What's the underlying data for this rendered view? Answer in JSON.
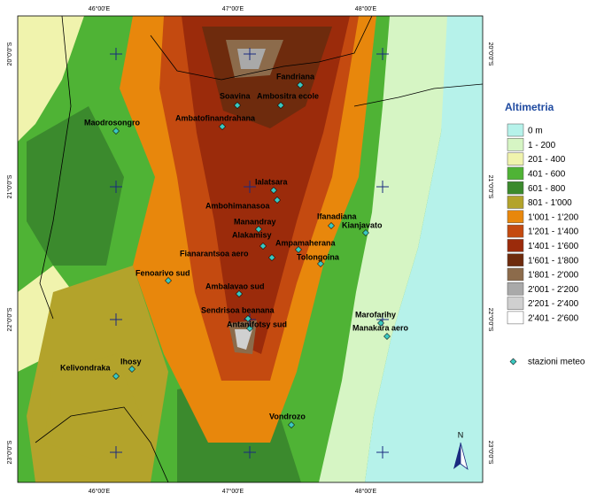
{
  "map": {
    "longitude_labels_top": [
      "46°00'E",
      "47°00'E",
      "48°00'E"
    ],
    "longitude_labels_bottom": [
      "46°00'E",
      "47°00'E",
      "48°00'E"
    ],
    "latitude_labels_left": [
      "20°0'0\"S",
      "21°0'0\"S",
      "22°0'0\"S",
      "23°0'0\"S"
    ],
    "latitude_labels_right": [
      "20°0'0\"S",
      "21°0'0\"S",
      "22°0'0\"S",
      "23°0'0\"S"
    ],
    "stations": [
      "Fandriana",
      "Soavina",
      "Ambositra ecole",
      "Ambatofinandrahana",
      "Maodrosongro",
      "Ialatsara",
      "Ambohimanasoa",
      "Manandray",
      "Ifanadiana",
      "Kianjavato",
      "Alakamisy",
      "Ampamaherana",
      "Fianarantsoa aero",
      "Tolongoina",
      "Fenoarivo sud",
      "Ambalavao sud",
      "Sendrisoa beanana",
      "Antanifotsy sud",
      "Marofarihy",
      "Manakara aero",
      "Ihosy",
      "Kelivondraka",
      "Vondrozo"
    ],
    "legend": {
      "title": "Altimetria",
      "classes": [
        {
          "label": "0  m",
          "color": "#b6f2ea"
        },
        {
          "label": "1 - 200",
          "color": "#d6f5c4"
        },
        {
          "label": "201 - 400",
          "color": "#f0f3ad"
        },
        {
          "label": "401 - 600",
          "color": "#4fb335"
        },
        {
          "label": "601 - 800",
          "color": "#3b8a2d"
        },
        {
          "label": "801 - 1'000",
          "color": "#b3a32b"
        },
        {
          "label": "1'001 - 1'200",
          "color": "#e8870c"
        },
        {
          "label": "1'201 - 1'400",
          "color": "#c44a10"
        },
        {
          "label": "1'401 - 1'600",
          "color": "#9b2b0b"
        },
        {
          "label": "1'601 - 1'800",
          "color": "#6e2b0d"
        },
        {
          "label": "1'801 - 2'000",
          "color": "#8c6b4b"
        },
        {
          "label": "2'001 - 2'200",
          "color": "#a9a9a9"
        },
        {
          "label": "2'201 - 2'400",
          "color": "#d0d0d0"
        },
        {
          "label": "2'401 - 2'600",
          "color": "#ffffff"
        }
      ],
      "station_label": "stazioni meteo",
      "station_color": "#3cc8c0"
    },
    "north_label": "N"
  }
}
